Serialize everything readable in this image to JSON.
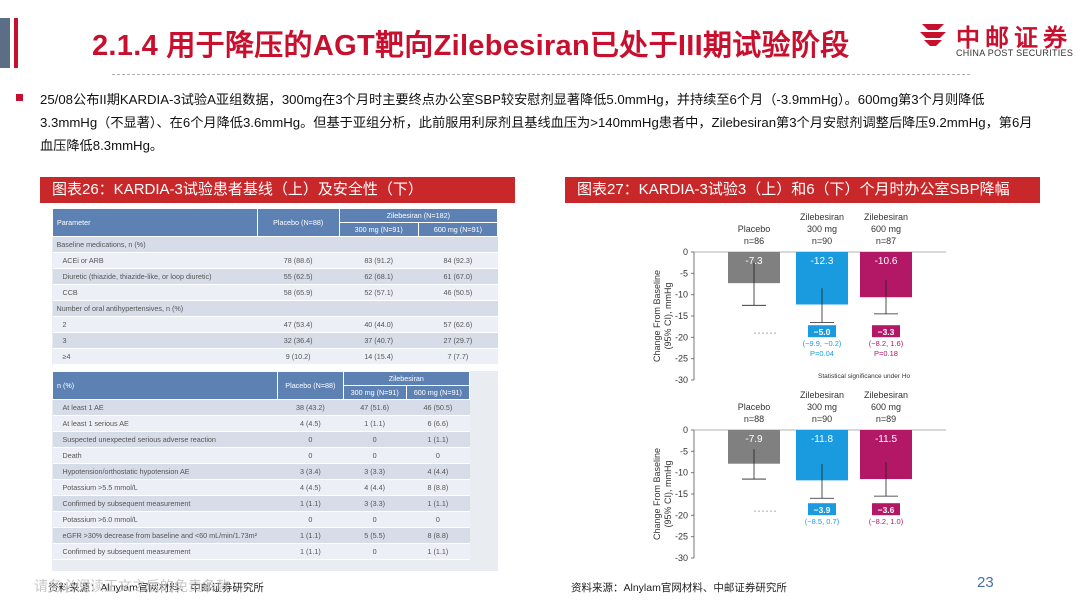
{
  "header": {
    "title": "2.1.4 用于降压的AGT靶向Zilebesiran已处于III期试验阶段",
    "logo_cn": "中邮证券",
    "logo_en": "CHINA POST SECURITIES"
  },
  "summary": "25/08公布II期KARDIA-3试验A亚组数据，300mg在3个月时主要终点办公室SBP较安慰剂显著降低5.0mmHg，并持续至6个月（-3.9mmHg）。600mg第3个月则降低3.3mmHg（不显著）、在6个月降低3.6mmHg。但基于亚组分析，此前服用利尿剂且基线血压为>140mmHg患者中，Zilebesiran第3个月安慰剂调整后降压9.2mmHg，第6月血压降低8.3mmHg。",
  "left_panel": {
    "title": "图表26：KARDIA-3试验患者基线（上）及安全性（下）",
    "source": "资料来源：Alnylam官网材料、中邮证券研究所",
    "baseline_table": {
      "headers": [
        "Parameter",
        "Placebo (N=88)",
        "Zilebesiran (N=182)",
        "300 mg (N=91)",
        "600 mg (N=91)"
      ],
      "rows": [
        [
          "Baseline medications, n (%)",
          "",
          "",
          ""
        ],
        [
          "ACEi or ARB",
          "78 (88.6)",
          "83 (91.2)",
          "84 (92.3)"
        ],
        [
          "Diuretic (thiazide, thiazide-like, or loop diuretic)",
          "55 (62.5)",
          "62 (68.1)",
          "61 (67.0)"
        ],
        [
          "CCB",
          "58 (65.9)",
          "52 (57.1)",
          "46 (50.5)"
        ],
        [
          "Number of oral antihypertensives, n (%)",
          "",
          "",
          ""
        ],
        [
          "2",
          "47 (53.4)",
          "40 (44.0)",
          "57 (62.6)"
        ],
        [
          "3",
          "32 (36.4)",
          "37 (40.7)",
          "27 (29.7)"
        ],
        [
          "≥4",
          "9 (10.2)",
          "14 (15.4)",
          "7 (7.7)"
        ]
      ]
    },
    "safety_table": {
      "headers": [
        "n (%)",
        "Placebo (N=88)",
        "Zilebesiran",
        "300 mg (N=91)",
        "600 mg (N=91)"
      ],
      "rows": [
        [
          "At least 1 AE",
          "38 (43.2)",
          "47 (51.6)",
          "46 (50.5)"
        ],
        [
          "At least 1 serious AE",
          "4 (4.5)",
          "1 (1.1)",
          "6 (6.6)"
        ],
        [
          "Suspected unexpected serious adverse reaction",
          "0",
          "0",
          "1 (1.1)"
        ],
        [
          "Death",
          "0",
          "0",
          "0"
        ],
        [
          "Hypotension/orthostatic hypotension AE",
          "3 (3.4)",
          "3 (3.3)",
          "4 (4.4)"
        ],
        [
          "Potassium >5.5 mmol/L",
          "4 (4.5)",
          "4 (4.4)",
          "8 (8.8)"
        ],
        [
          "Confirmed by subsequent measurement",
          "1 (1.1)",
          "3 (3.3)",
          "1 (1.1)"
        ],
        [
          "Potassium >6.0 mmol/L",
          "0",
          "0",
          "0"
        ],
        [
          "eGFR >30% decrease from baseline and <60 mL/min/1.73m²",
          "1 (1.1)",
          "5 (5.5)",
          "8 (8.8)"
        ],
        [
          "Confirmed by subsequent measurement",
          "1 (1.1)",
          "0",
          "1 (1.1)"
        ]
      ]
    }
  },
  "right_panel": {
    "title": "图表27：KARDIA-3试验3（上）和6（下）个月时办公室SBP降幅",
    "source": "资料来源：Alnylam官网材料、中邮证券研究所",
    "annotation": "Statistical significance under Ho"
  },
  "chart_data": [
    {
      "type": "bar",
      "title": "Month 3",
      "ylabel": "Change From Baseline (95% CI), mmHg",
      "ylim": [
        -30,
        0
      ],
      "yticks": [
        "0",
        "-5",
        "-10",
        "-15",
        "-20",
        "-25",
        "-30"
      ],
      "categories": [
        "Placebo",
        "Zilebesiran 300 mg",
        "Zilebesiran 600 mg"
      ],
      "cat_lines": [
        [
          "Placebo",
          "n=86"
        ],
        [
          "Zilebesiran",
          "300 mg",
          "n=90"
        ],
        [
          "Zilebesiran",
          "600 mg",
          "n=87"
        ]
      ],
      "values": [
        -7.3,
        -12.3,
        -10.6
      ],
      "value_labels": [
        "-7.3",
        "-12.3",
        "-10.6"
      ],
      "ci_low": [
        -12.5,
        -16.5,
        -14.5
      ],
      "ci_high": [
        -2.5,
        -8.5,
        -6.5
      ],
      "colors": [
        "#808080",
        "#1a9be0",
        "#b31866"
      ],
      "placebo_adjusted": [
        {
          "label": "−5.0",
          "ci": "(−9.9, −0.2)",
          "p": "P=0.04"
        },
        {
          "label": "−3.3",
          "ci": "(−8.2, 1.6)",
          "p": "P=0.18"
        }
      ]
    },
    {
      "type": "bar",
      "title": "Month 6",
      "ylabel": "Change From Baseline (95% CI), mmHg",
      "ylim": [
        -30,
        0
      ],
      "yticks": [
        "0",
        "-5",
        "-10",
        "-15",
        "-20",
        "-25",
        "-30"
      ],
      "categories": [
        "Placebo",
        "Zilebesiran 300 mg",
        "Zilebesiran 600 mg"
      ],
      "cat_lines": [
        [
          "Placebo",
          "n=88"
        ],
        [
          "Zilebesiran",
          "300 mg",
          "n=90"
        ],
        [
          "Zilebesiran",
          "600 mg",
          "n=89"
        ]
      ],
      "values": [
        -7.9,
        -11.8,
        -11.5
      ],
      "value_labels": [
        "-7.9",
        "-11.8",
        "-11.5"
      ],
      "ci_low": [
        -11.5,
        -16.0,
        -15.5
      ],
      "ci_high": [
        -4.5,
        -8.0,
        -7.5
      ],
      "colors": [
        "#808080",
        "#1a9be0",
        "#b31866"
      ],
      "placebo_adjusted": [
        {
          "label": "−3.9",
          "ci": "(−8.5, 0.7)",
          "p": ""
        },
        {
          "label": "−3.6",
          "ci": "(−8.2, 1.0)",
          "p": ""
        }
      ]
    }
  ],
  "footer": {
    "page_number": "23",
    "watermark": "请务必阅读正文之后的免责条款"
  }
}
